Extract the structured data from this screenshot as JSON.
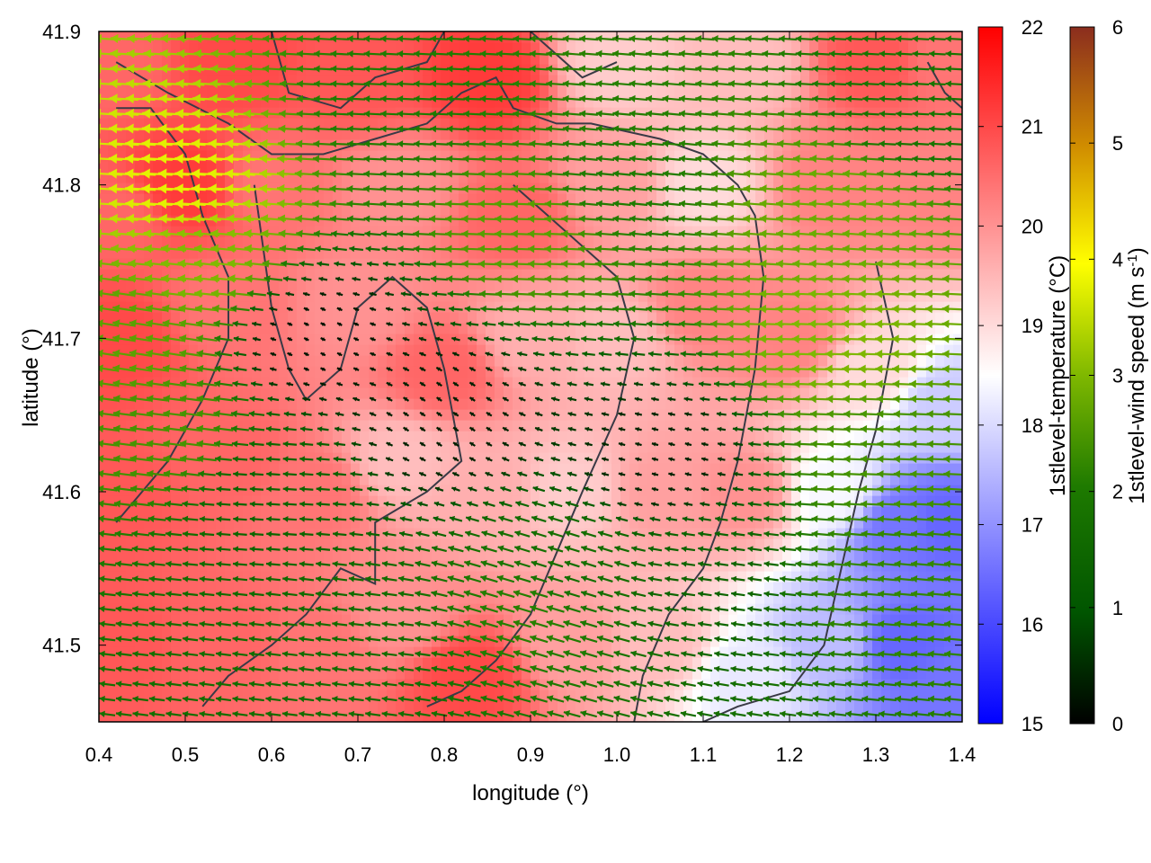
{
  "chart_data": {
    "type": "heatmap",
    "subtype": "vector-field-over-scalar-map",
    "xlabel": "longitude (°)",
    "ylabel": "latitude (°)",
    "xlim": [
      0.4,
      1.4
    ],
    "ylim": [
      41.45,
      41.9
    ],
    "xticks": [
      "0.4",
      "0.5",
      "0.6",
      "0.7",
      "0.8",
      "0.9",
      "1.0",
      "1.1",
      "1.2",
      "1.3",
      "1.4"
    ],
    "yticks": [
      "41.5",
      "41.6",
      "41.7",
      "41.8",
      "41.9"
    ],
    "xtick_values": [
      0.4,
      0.5,
      0.6,
      0.7,
      0.8,
      0.9,
      1.0,
      1.1,
      1.2,
      1.3,
      1.4
    ],
    "ytick_values": [
      41.5,
      41.6,
      41.7,
      41.8,
      41.9
    ],
    "grid": false,
    "colorbar_temperature": {
      "label": "1stlevel-temperature (°C)",
      "range": [
        15,
        22
      ],
      "ticks": [
        "15",
        "16",
        "17",
        "18",
        "19",
        "20",
        "21",
        "22"
      ],
      "tick_values": [
        15,
        16,
        17,
        18,
        19,
        20,
        21,
        22
      ],
      "colors": [
        "#0000ff",
        "#ffffff",
        "#ff0000"
      ]
    },
    "colorbar_wind": {
      "label_main": "1stlevel-wind speed (m s",
      "label_sup": "-1",
      "label_end": ")",
      "range": [
        0,
        6
      ],
      "ticks": [
        "0",
        "1",
        "2",
        "3",
        "4",
        "5",
        "6"
      ],
      "tick_values": [
        0,
        1,
        2,
        3,
        4,
        5,
        6
      ],
      "colors": [
        "#000000",
        "#005500",
        "#1e7a00",
        "#7fb800",
        "#ffff00",
        "#d08c00",
        "#8b2d1e"
      ]
    },
    "temperature_field": {
      "description_points_lon_lat_value": [
        [
          0.42,
          41.88,
          20.6
        ],
        [
          0.55,
          41.88,
          21.0
        ],
        [
          0.7,
          41.87,
          20.8
        ],
        [
          0.85,
          41.87,
          21.2
        ],
        [
          1.0,
          41.88,
          19.2
        ],
        [
          1.15,
          41.88,
          19.4
        ],
        [
          1.3,
          41.88,
          20.8
        ],
        [
          1.38,
          41.88,
          20.4
        ],
        [
          0.42,
          41.78,
          20.6
        ],
        [
          0.5,
          41.8,
          21.2
        ],
        [
          0.6,
          41.8,
          20.4
        ],
        [
          0.75,
          41.8,
          20.0
        ],
        [
          0.88,
          41.78,
          20.6
        ],
        [
          1.0,
          41.8,
          19.8
        ],
        [
          1.1,
          41.8,
          19.0
        ],
        [
          1.25,
          41.8,
          20.2
        ],
        [
          1.38,
          41.8,
          20.2
        ],
        [
          0.42,
          41.7,
          21.0
        ],
        [
          0.55,
          41.72,
          20.4
        ],
        [
          0.7,
          41.72,
          20.0
        ],
        [
          0.8,
          41.68,
          20.6
        ],
        [
          0.9,
          41.7,
          19.6
        ],
        [
          1.0,
          41.7,
          19.4
        ],
        [
          1.1,
          41.72,
          20.2
        ],
        [
          1.2,
          41.7,
          20.2
        ],
        [
          1.3,
          41.68,
          19.0
        ],
        [
          1.38,
          41.66,
          17.8
        ],
        [
          0.42,
          41.6,
          20.8
        ],
        [
          0.55,
          41.62,
          20.6
        ],
        [
          0.65,
          41.6,
          20.4
        ],
        [
          0.75,
          41.62,
          19.4
        ],
        [
          0.85,
          41.6,
          19.6
        ],
        [
          0.95,
          41.6,
          19.2
        ],
        [
          1.05,
          41.6,
          19.8
        ],
        [
          1.15,
          41.6,
          20.0
        ],
        [
          1.25,
          41.6,
          18.4
        ],
        [
          1.33,
          41.58,
          16.6
        ],
        [
          1.38,
          41.58,
          16.4
        ],
        [
          0.42,
          41.5,
          20.8
        ],
        [
          0.55,
          41.5,
          20.6
        ],
        [
          0.65,
          41.5,
          20.4
        ],
        [
          0.75,
          41.52,
          20.0
        ],
        [
          0.83,
          41.48,
          21.0
        ],
        [
          0.95,
          41.5,
          19.8
        ],
        [
          1.05,
          41.5,
          19.4
        ],
        [
          1.15,
          41.48,
          18.2
        ],
        [
          1.25,
          41.5,
          17.6
        ],
        [
          1.33,
          41.5,
          16.4
        ],
        [
          1.38,
          41.47,
          16.6
        ]
      ]
    },
    "wind_field": {
      "direction": "mostly from east (arrows pointing west)",
      "regions_lon_lat_u_v": [
        [
          0.5,
          41.8,
          -3.8,
          0.2
        ],
        [
          0.52,
          41.75,
          -3.0,
          0.3
        ],
        [
          0.45,
          41.7,
          -2.6,
          0.4
        ],
        [
          0.48,
          41.64,
          -2.4,
          0.3
        ],
        [
          0.75,
          41.85,
          -2.0,
          0.1
        ],
        [
          0.9,
          41.77,
          -2.6,
          0.1
        ],
        [
          1.0,
          41.8,
          -2.0,
          0.2
        ],
        [
          1.25,
          41.78,
          -2.8,
          0.2
        ],
        [
          1.25,
          41.7,
          -3.0,
          0.1
        ],
        [
          1.3,
          41.62,
          -2.4,
          0.1
        ],
        [
          1.3,
          41.55,
          -2.2,
          0.2
        ],
        [
          0.9,
          41.52,
          -2.0,
          0.6
        ],
        [
          0.7,
          41.5,
          -1.6,
          0.2
        ],
        [
          0.8,
          41.65,
          -0.3,
          0.2
        ],
        [
          0.65,
          41.7,
          -0.2,
          0.1
        ],
        [
          1.05,
          41.62,
          -0.4,
          0.1
        ],
        [
          0.95,
          41.55,
          -1.6,
          0.5
        ],
        [
          0.6,
          41.6,
          -1.4,
          0.1
        ],
        [
          1.1,
          41.55,
          -1.4,
          0.2
        ],
        [
          1.35,
          41.85,
          -1.8,
          0.1
        ]
      ]
    },
    "contours_lon_lat": [
      [
        [
          0.42,
          41.88
        ],
        [
          0.48,
          41.86
        ],
        [
          0.55,
          41.84
        ],
        [
          0.6,
          41.82
        ],
        [
          0.66,
          41.82
        ],
        [
          0.72,
          41.83
        ],
        [
          0.78,
          41.84
        ],
        [
          0.82,
          41.86
        ],
        [
          0.86,
          41.87
        ],
        [
          0.88,
          41.85
        ],
        [
          0.93,
          41.84
        ],
        [
          0.97,
          41.84
        ],
        [
          1.05,
          41.83
        ],
        [
          1.1,
          41.82
        ],
        [
          1.14,
          41.8
        ],
        [
          1.16,
          41.78
        ],
        [
          1.17,
          41.74
        ],
        [
          1.16,
          41.68
        ],
        [
          1.14,
          41.62
        ],
        [
          1.12,
          41.58
        ],
        [
          1.1,
          41.55
        ],
        [
          1.06,
          41.52
        ],
        [
          1.03,
          41.48
        ],
        [
          1.02,
          41.45
        ]
      ],
      [
        [
          0.6,
          41.9
        ],
        [
          0.62,
          41.86
        ],
        [
          0.68,
          41.85
        ],
        [
          0.72,
          41.87
        ],
        [
          0.78,
          41.88
        ],
        [
          0.8,
          41.9
        ]
      ],
      [
        [
          0.9,
          41.9
        ],
        [
          0.96,
          41.87
        ],
        [
          1.0,
          41.88
        ]
      ],
      [
        [
          0.58,
          41.8
        ],
        [
          0.6,
          41.72
        ],
        [
          0.62,
          41.68
        ],
        [
          0.64,
          41.66
        ],
        [
          0.68,
          41.68
        ],
        [
          0.7,
          41.72
        ],
        [
          0.74,
          41.74
        ],
        [
          0.78,
          41.72
        ],
        [
          0.8,
          41.68
        ],
        [
          0.82,
          41.62
        ],
        [
          0.78,
          41.6
        ],
        [
          0.72,
          41.58
        ],
        [
          0.72,
          41.54
        ],
        [
          0.68,
          41.55
        ],
        [
          0.64,
          41.52
        ],
        [
          0.6,
          41.5
        ],
        [
          0.55,
          41.48
        ],
        [
          0.52,
          41.46
        ]
      ],
      [
        [
          0.42,
          41.58
        ],
        [
          0.48,
          41.62
        ],
        [
          0.52,
          41.66
        ],
        [
          0.55,
          41.7
        ],
        [
          0.55,
          41.74
        ],
        [
          0.52,
          41.78
        ],
        [
          0.5,
          41.82
        ],
        [
          0.46,
          41.85
        ],
        [
          0.42,
          41.85
        ]
      ],
      [
        [
          0.88,
          41.8
        ],
        [
          0.92,
          41.78
        ],
        [
          0.96,
          41.76
        ],
        [
          1.0,
          41.74
        ],
        [
          1.02,
          41.7
        ],
        [
          1.0,
          41.65
        ],
        [
          0.96,
          41.6
        ],
        [
          0.93,
          41.56
        ],
        [
          0.9,
          41.52
        ],
        [
          0.86,
          41.49
        ],
        [
          0.82,
          41.47
        ],
        [
          0.78,
          41.46
        ]
      ],
      [
        [
          1.3,
          41.75
        ],
        [
          1.32,
          41.7
        ],
        [
          1.3,
          41.64
        ],
        [
          1.28,
          41.6
        ],
        [
          1.26,
          41.55
        ],
        [
          1.24,
          41.5
        ],
        [
          1.2,
          41.47
        ],
        [
          1.14,
          41.46
        ],
        [
          1.1,
          41.45
        ]
      ],
      [
        [
          1.36,
          41.88
        ],
        [
          1.38,
          41.86
        ],
        [
          1.4,
          41.85
        ]
      ]
    ]
  }
}
